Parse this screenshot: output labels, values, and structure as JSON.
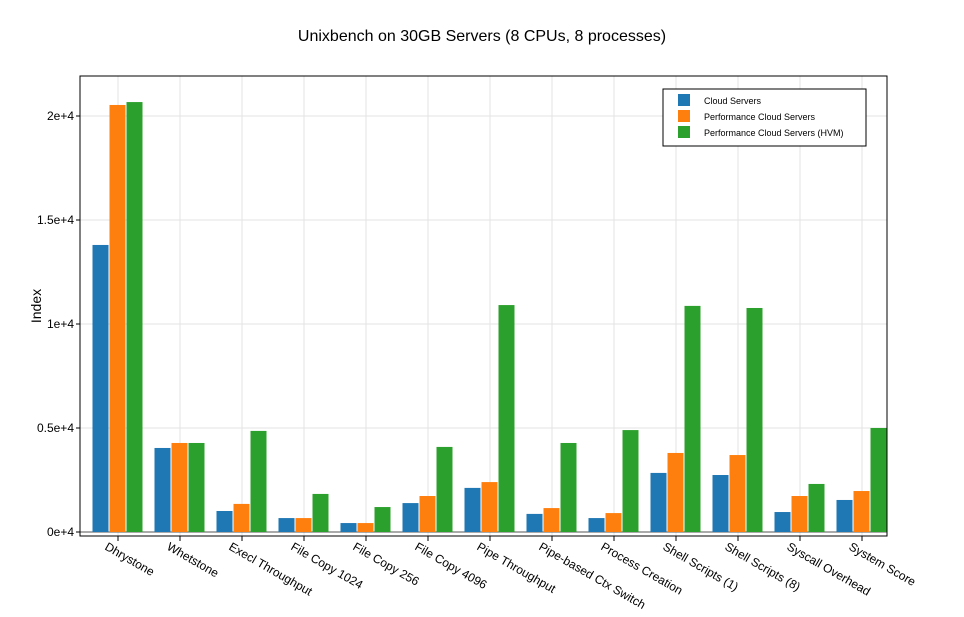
{
  "chart_data": {
    "type": "bar",
    "title": "Unixbench on 30GB Servers (8 CPUs, 8 processes)",
    "xlabel": "",
    "ylabel": "Index",
    "ylim": [
      0,
      21800
    ],
    "yticks": [
      0,
      5000,
      10000,
      15000,
      20000
    ],
    "ytick_labels": [
      "0e+4",
      "0.5e+4",
      "1e+4",
      "1.5e+4",
      "2e+4"
    ],
    "grid": true,
    "legend_position": "top-right",
    "categories": [
      "Dhrystone",
      "Whetstone",
      "Execl Throughput",
      "File Copy 1024",
      "File Copy 256",
      "File Copy 4096",
      "Pipe Throughput",
      "Pipe-based Ctx Switch",
      "Process Creation",
      "Shell Scripts (1)",
      "Shell Scripts (8)",
      "Syscall Overhead",
      "System Score"
    ],
    "series": [
      {
        "name": "Cloud Servers",
        "color": "#1f77b4",
        "values": [
          13800,
          4040,
          1010,
          670,
          430,
          1390,
          2120,
          870,
          670,
          2840,
          2740,
          960,
          1540
        ]
      },
      {
        "name": "Performance Cloud Servers",
        "color": "#ff7f0e",
        "values": [
          20530,
          4280,
          1350,
          670,
          430,
          1730,
          2400,
          1150,
          910,
          3800,
          3700,
          1730,
          1970
        ]
      },
      {
        "name": "Performance Cloud Servers (HVM)",
        "color": "#2ca02c",
        "values": [
          20670,
          4280,
          4860,
          1830,
          1200,
          4090,
          10910,
          4280,
          4900,
          10870,
          10770,
          2310,
          5000
        ]
      }
    ]
  }
}
